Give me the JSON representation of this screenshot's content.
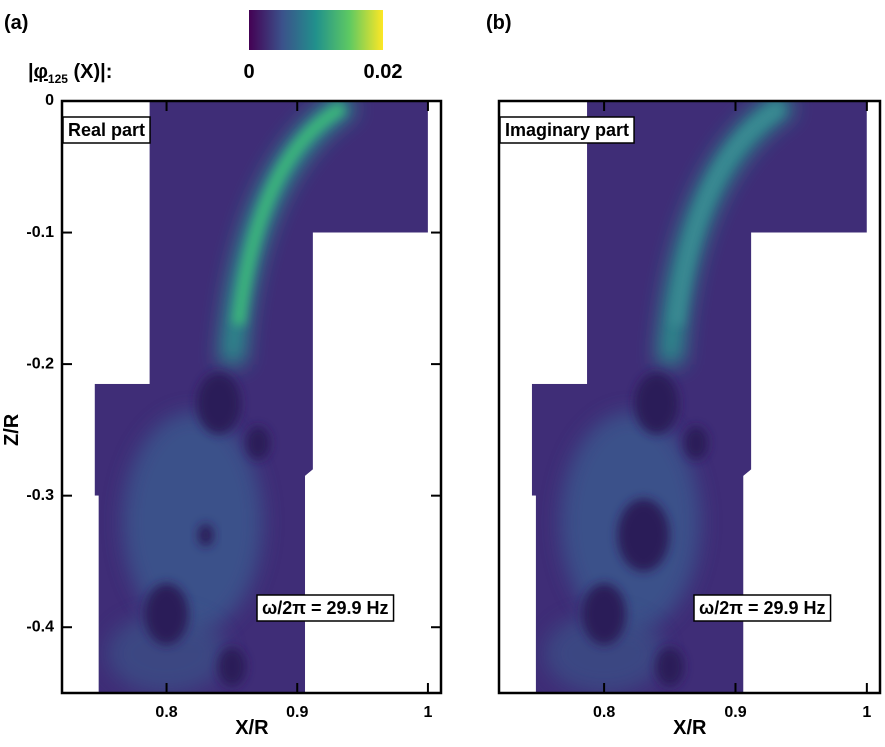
{
  "chart_data": [
    {
      "type": "contour",
      "panel_label": "(a)",
      "annotation": "Real part",
      "frequency_label": "ω/2π = 29.9 Hz",
      "xlabel": "X/R",
      "ylabel": "Z/R",
      "xlim": [
        0.72,
        1.01
      ],
      "ylim": [
        -0.45,
        0
      ],
      "xticks": [
        0.8,
        0.9,
        1
      ],
      "yticks": [
        0,
        -0.1,
        -0.2,
        -0.3,
        -0.4
      ]
    },
    {
      "type": "contour",
      "panel_label": "(b)",
      "annotation": "Imaginary part",
      "frequency_label": "ω/2π = 29.9 Hz",
      "xlabel": "X/R",
      "xlim": [
        0.72,
        1.01
      ],
      "ylim": [
        -0.45,
        0
      ],
      "xticks": [
        0.8,
        0.9,
        1
      ]
    }
  ],
  "colorbar": {
    "label_parts": [
      "|φ",
      "125",
      " (X)|:"
    ],
    "lim": [
      0,
      0.02
    ],
    "ticks": [
      0,
      0.02
    ],
    "colors": [
      "#440154",
      "#3b528b",
      "#21918c",
      "#5ec962",
      "#fde725"
    ]
  }
}
